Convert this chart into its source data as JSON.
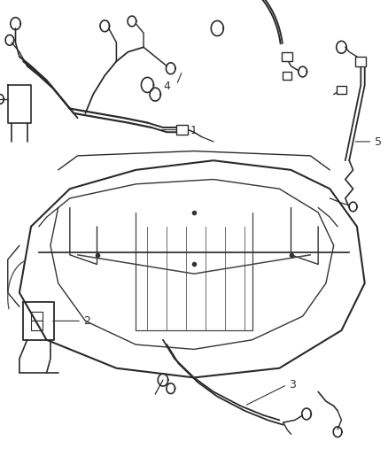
{
  "bg_color": "#ffffff",
  "fig_width": 4.38,
  "fig_height": 5.33,
  "dpi": 100,
  "line_color": "#333333",
  "wire_color": "#2a2a2a"
}
